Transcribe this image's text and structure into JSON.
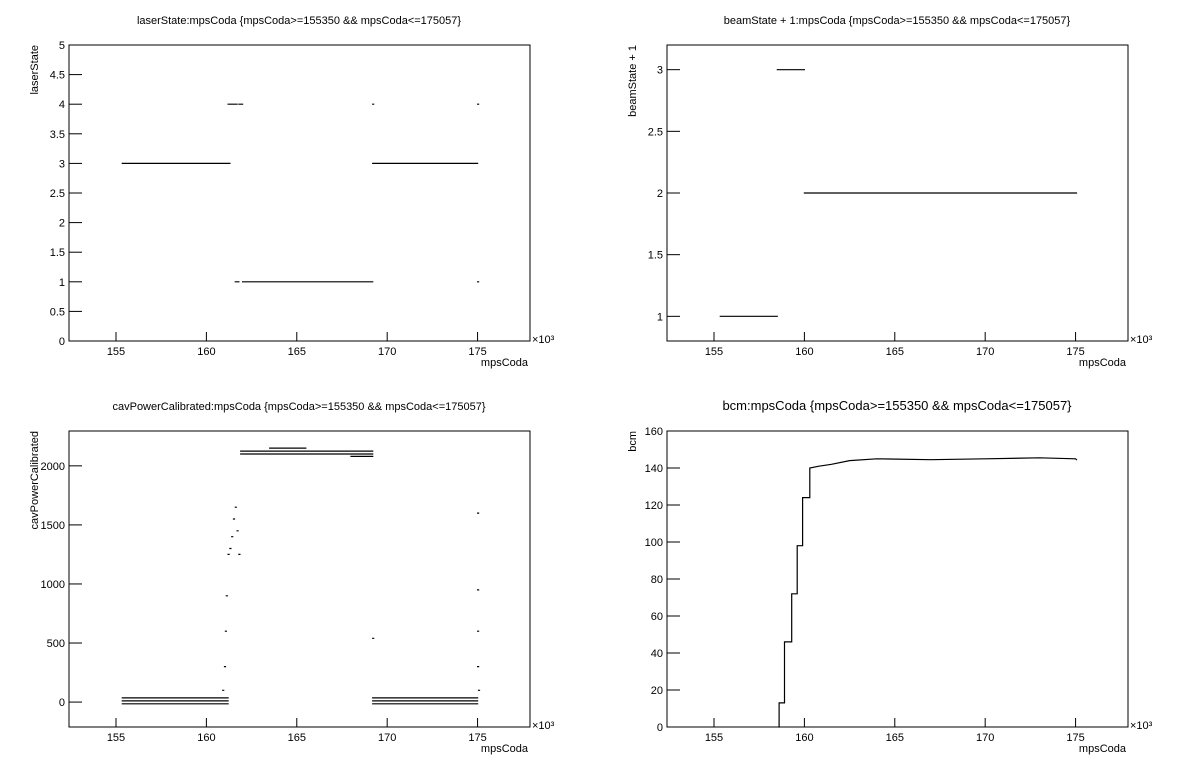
{
  "chart_data": [
    {
      "type": "line",
      "title": "laserState:mpsCoda {mpsCoda>=155350 && mpsCoda<=175057}",
      "x_label": "mpsCoda",
      "y_label": "laserState",
      "x_exponent": "×10³",
      "xlim": [
        152.4,
        177.9
      ],
      "xticks": [
        155,
        160,
        165,
        170,
        175
      ],
      "ylim": [
        0,
        5
      ],
      "yticks": [
        0,
        0.5,
        1,
        1.5,
        2,
        2.5,
        3,
        3.5,
        4,
        4.5,
        5
      ],
      "color": "#000000",
      "x": [
        155.35,
        161.3,
        null,
        161.2,
        161.7,
        null,
        161.8,
        162.0,
        null,
        161.6,
        161.8,
        null,
        162.0,
        169.2,
        null,
        169.2,
        175.0,
        null,
        169.2,
        null,
        175.0,
        null,
        175.0
      ],
      "values": [
        3,
        3,
        null,
        4,
        4,
        null,
        4,
        4,
        null,
        1,
        1,
        null,
        1,
        1,
        null,
        3,
        3,
        null,
        4,
        null,
        4,
        null,
        1
      ]
    },
    {
      "type": "line",
      "title": "beamState + 1:mpsCoda {mpsCoda>=155350 && mpsCoda<=175057}",
      "x_label": "mpsCoda",
      "y_label": "beamState + 1",
      "x_exponent": "×10³",
      "xlim": [
        152.4,
        177.9
      ],
      "xticks": [
        155,
        160,
        165,
        170,
        175
      ],
      "ylim": [
        0.8,
        3.2
      ],
      "yticks": [
        1,
        1.5,
        2,
        2.5,
        3
      ],
      "color": "#000000",
      "x": [
        155.35,
        158.5,
        null,
        158.5,
        160.0,
        null,
        160.0,
        175.05
      ],
      "values": [
        1,
        1,
        null,
        3,
        3,
        null,
        2,
        2
      ]
    },
    {
      "type": "line",
      "title": "cavPowerCalibrated:mpsCoda {mpsCoda>=155350 && mpsCoda<=175057}",
      "x_label": "mpsCoda",
      "y_label": "cavPowerCalibrated",
      "x_exponent": "×10³",
      "xlim": [
        152.4,
        177.9
      ],
      "xticks": [
        155,
        160,
        165,
        170,
        175
      ],
      "ylim": [
        -211,
        2295
      ],
      "yticks": [
        0,
        500,
        1000,
        1500,
        2000
      ],
      "color": "#000000",
      "x": [
        155.35,
        161.2,
        null,
        155.35,
        161.2,
        null,
        155.35,
        161.2,
        null,
        160.9,
        null,
        161.0,
        null,
        161.05,
        null,
        161.1,
        null,
        161.2,
        null,
        161.3,
        null,
        161.4,
        null,
        161.5,
        null,
        161.6,
        null,
        161.7,
        null,
        161.8,
        null,
        161.9,
        169.2,
        null,
        161.9,
        169.2,
        null,
        163.5,
        165.5,
        null,
        168.0,
        169.2,
        null,
        169.2,
        null,
        169.2,
        175.0,
        null,
        169.2,
        175.0,
        null,
        169.2,
        175.0,
        null,
        175.0,
        null,
        175.0,
        null,
        175.0,
        null,
        175.0,
        null,
        175.05
      ],
      "values": [
        35,
        35,
        null,
        10,
        10,
        null,
        -15,
        -15,
        null,
        100,
        null,
        300,
        null,
        600,
        null,
        900,
        null,
        1250,
        null,
        1300,
        null,
        1400,
        null,
        1550,
        null,
        1650,
        null,
        1450,
        null,
        1250,
        null,
        2100,
        2100,
        null,
        2125,
        2125,
        null,
        2150,
        2150,
        null,
        2080,
        2080,
        null,
        540,
        null,
        35,
        35,
        null,
        10,
        10,
        null,
        -15,
        -15,
        null,
        300,
        null,
        600,
        null,
        950,
        null,
        1600,
        null,
        100
      ]
    },
    {
      "type": "line",
      "title": "bcm:mpsCoda {mpsCoda>=155350 && mpsCoda<=175057}",
      "x_label": "mpsCoda",
      "y_label": "bcm",
      "x_exponent": "×10³",
      "xlim": [
        152.4,
        177.9
      ],
      "xticks": [
        155,
        160,
        165,
        170,
        175
      ],
      "ylim": [
        0,
        160
      ],
      "yticks": [
        0,
        20,
        40,
        60,
        80,
        100,
        120,
        140,
        160
      ],
      "color": "#000000",
      "x": [
        158.6,
        158.6,
        158.9,
        158.9,
        159.3,
        159.3,
        159.6,
        159.6,
        159.9,
        159.9,
        160.3,
        160.3,
        160.8,
        161.5,
        162.5,
        164,
        167,
        170,
        173,
        175,
        175.05
      ],
      "values": [
        0,
        13,
        13,
        46,
        46,
        72,
        72,
        98,
        98,
        124,
        124,
        140,
        141,
        142,
        144,
        145,
        144.5,
        145,
        145.5,
        145,
        144.5
      ]
    }
  ]
}
